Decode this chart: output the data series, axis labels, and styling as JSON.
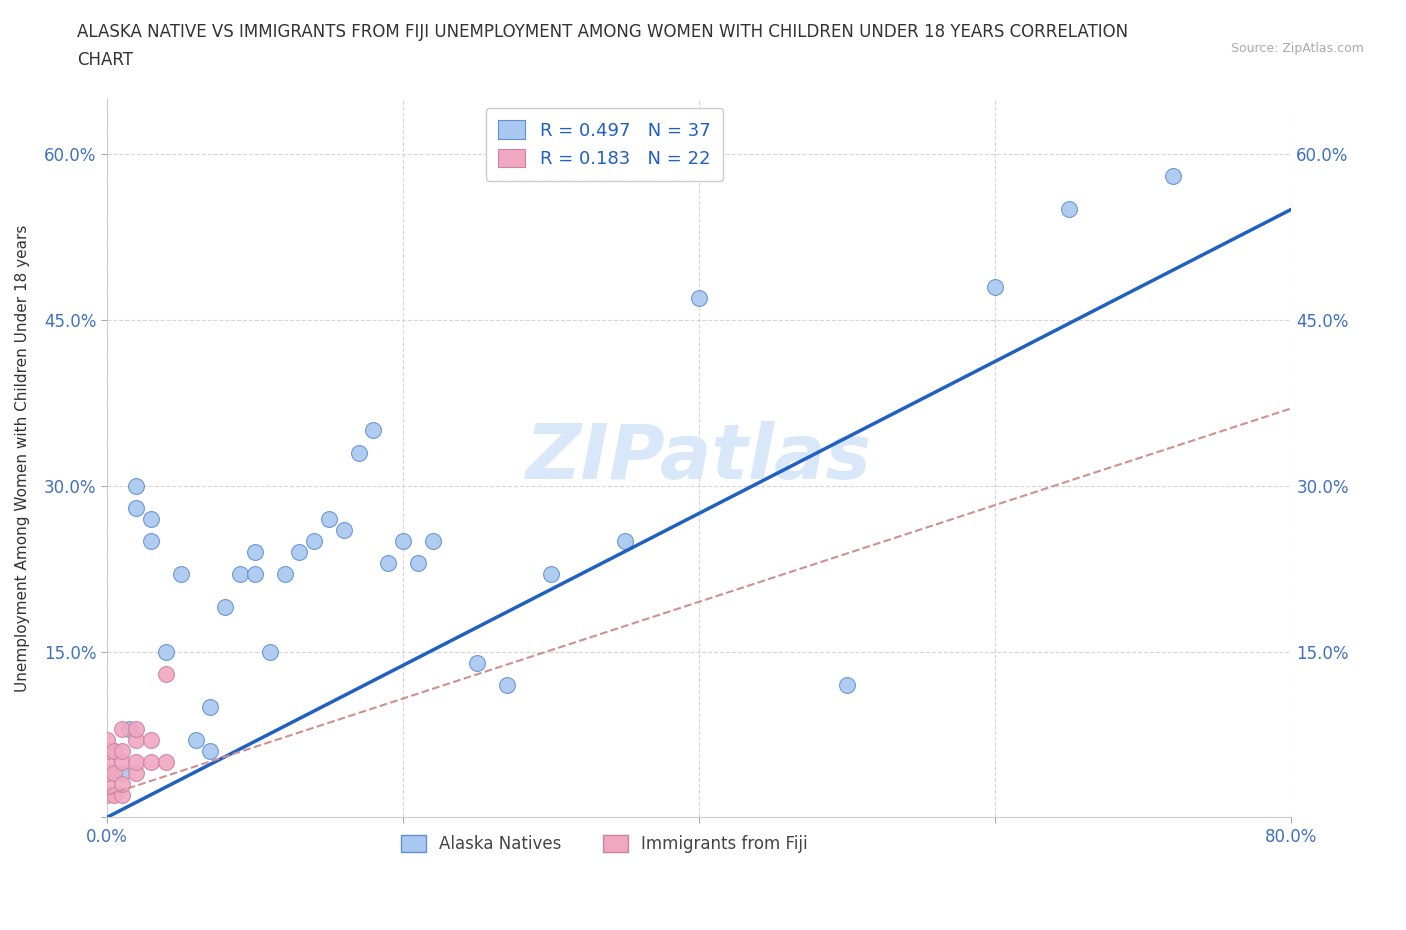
{
  "title_line1": "ALASKA NATIVE VS IMMIGRANTS FROM FIJI UNEMPLOYMENT AMONG WOMEN WITH CHILDREN UNDER 18 YEARS CORRELATION",
  "title_line2": "CHART",
  "source": "Source: ZipAtlas.com",
  "ylabel": "Unemployment Among Women with Children Under 18 years",
  "xlim": [
    0.0,
    0.8
  ],
  "ylim": [
    0.0,
    0.65
  ],
  "xticks": [
    0.0,
    0.2,
    0.4,
    0.6,
    0.8
  ],
  "yticks": [
    0.0,
    0.15,
    0.3,
    0.45,
    0.6
  ],
  "xticklabels_show": [
    "0.0%",
    "80.0%"
  ],
  "xticklabels_show_vals": [
    0.0,
    0.8
  ],
  "yticklabels_show": [
    "15.0%",
    "30.0%",
    "45.0%",
    "60.0%"
  ],
  "yticklabels_show_vals": [
    0.15,
    0.3,
    0.45,
    0.6
  ],
  "watermark": "ZIPatlas",
  "legend_label1": "Alaska Natives",
  "legend_label2": "Immigrants from Fiji",
  "R1": "0.497",
  "N1": "37",
  "R2": "0.183",
  "N2": "22",
  "color1": "#a8c8f0",
  "color2": "#f0a8c0",
  "edge_color1": "#6090d0",
  "edge_color2": "#d080a0",
  "line_color1": "#2060c0",
  "line_color2": "#d09090",
  "tick_color": "#4070c0",
  "alaska_x": [
    0.005,
    0.01,
    0.015,
    0.02,
    0.02,
    0.03,
    0.03,
    0.04,
    0.05,
    0.06,
    0.07,
    0.07,
    0.08,
    0.09,
    0.1,
    0.1,
    0.11,
    0.12,
    0.13,
    0.14,
    0.15,
    0.16,
    0.17,
    0.18,
    0.19,
    0.2,
    0.21,
    0.22,
    0.25,
    0.27,
    0.3,
    0.35,
    0.4,
    0.5,
    0.6,
    0.65,
    0.72
  ],
  "alaska_y": [
    0.06,
    0.04,
    0.08,
    0.28,
    0.3,
    0.25,
    0.27,
    0.15,
    0.22,
    0.07,
    0.06,
    0.1,
    0.19,
    0.22,
    0.22,
    0.24,
    0.15,
    0.22,
    0.24,
    0.25,
    0.27,
    0.26,
    0.33,
    0.35,
    0.23,
    0.25,
    0.23,
    0.25,
    0.14,
    0.12,
    0.22,
    0.25,
    0.47,
    0.12,
    0.48,
    0.55,
    0.58
  ],
  "fiji_x": [
    0.0,
    0.0,
    0.0,
    0.0,
    0.0,
    0.0,
    0.005,
    0.005,
    0.005,
    0.01,
    0.01,
    0.01,
    0.01,
    0.01,
    0.02,
    0.02,
    0.02,
    0.02,
    0.03,
    0.03,
    0.04,
    0.04
  ],
  "fiji_y": [
    0.02,
    0.03,
    0.04,
    0.05,
    0.06,
    0.07,
    0.02,
    0.04,
    0.06,
    0.02,
    0.03,
    0.05,
    0.06,
    0.08,
    0.04,
    0.05,
    0.07,
    0.08,
    0.05,
    0.07,
    0.13,
    0.05
  ],
  "blue_line_x0": 0.0,
  "blue_line_y0": 0.0,
  "blue_line_x1": 0.8,
  "blue_line_y1": 0.55,
  "pink_line_x0": 0.0,
  "pink_line_y0": 0.02,
  "pink_line_x1": 0.8,
  "pink_line_y1": 0.37
}
